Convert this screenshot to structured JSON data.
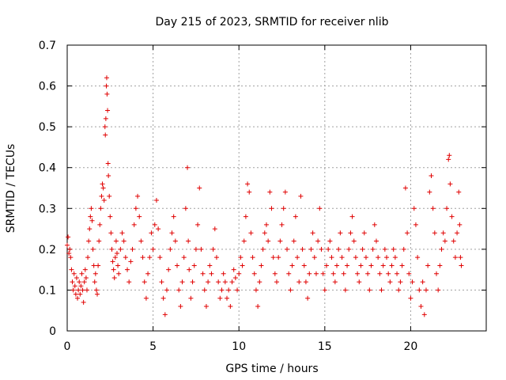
{
  "chart_data": {
    "type": "scatter",
    "title": "Day 215 of 2023, SRMTID for receiver nlib",
    "xlabel": "GPS time / hours",
    "ylabel": "SRMTID / TECUs",
    "xlim": [
      0,
      24.4
    ],
    "ylim": [
      0,
      0.7
    ],
    "x_ticks": [
      0,
      5,
      10,
      15,
      20
    ],
    "x_tick_labels": [
      "0",
      "5",
      "10",
      "15",
      "20"
    ],
    "y_ticks": [
      0,
      0.1,
      0.2,
      0.3,
      0.4,
      0.5,
      0.6,
      0.7
    ],
    "y_tick_labels": [
      "0",
      "0.1",
      "0.2",
      "0.3",
      "0.4",
      "0.5",
      "0.6",
      "0.7"
    ],
    "grid": true,
    "marker": "plus",
    "color": "#e00000",
    "series": [
      {
        "name": "SRMTID",
        "points": [
          [
            0.0,
            0.21
          ],
          [
            0.05,
            0.23
          ],
          [
            0.1,
            0.19
          ],
          [
            0.15,
            0.2
          ],
          [
            0.2,
            0.18
          ],
          [
            0.25,
            0.15
          ],
          [
            0.3,
            0.12
          ],
          [
            0.35,
            0.1
          ],
          [
            0.4,
            0.14
          ],
          [
            0.45,
            0.11
          ],
          [
            0.5,
            0.09
          ],
          [
            0.55,
            0.13
          ],
          [
            0.6,
            0.08
          ],
          [
            0.65,
            0.1
          ],
          [
            0.7,
            0.12
          ],
          [
            0.75,
            0.09
          ],
          [
            0.8,
            0.11
          ],
          [
            0.85,
            0.14
          ],
          [
            0.9,
            0.1
          ],
          [
            0.95,
            0.07
          ],
          [
            1.0,
            0.12
          ],
          [
            1.05,
            0.15
          ],
          [
            1.1,
            0.13
          ],
          [
            1.15,
            0.1
          ],
          [
            1.2,
            0.18
          ],
          [
            1.25,
            0.22
          ],
          [
            1.3,
            0.25
          ],
          [
            1.35,
            0.28
          ],
          [
            1.4,
            0.3
          ],
          [
            1.45,
            0.27
          ],
          [
            1.5,
            0.2
          ],
          [
            1.55,
            0.16
          ],
          [
            1.6,
            0.12
          ],
          [
            1.65,
            0.14
          ],
          [
            1.7,
            0.1
          ],
          [
            1.75,
            0.09
          ],
          [
            1.8,
            0.16
          ],
          [
            1.85,
            0.22
          ],
          [
            1.9,
            0.26
          ],
          [
            1.95,
            0.3
          ],
          [
            2.0,
            0.33
          ],
          [
            2.05,
            0.36
          ],
          [
            2.1,
            0.35
          ],
          [
            2.15,
            0.32
          ],
          [
            2.2,
            0.5
          ],
          [
            2.22,
            0.48
          ],
          [
            2.25,
            0.52
          ],
          [
            2.28,
            0.6
          ],
          [
            2.3,
            0.62
          ],
          [
            2.32,
            0.58
          ],
          [
            2.35,
            0.54
          ],
          [
            2.38,
            0.41
          ],
          [
            2.4,
            0.38
          ],
          [
            2.45,
            0.33
          ],
          [
            2.5,
            0.28
          ],
          [
            2.55,
            0.24
          ],
          [
            2.6,
            0.2
          ],
          [
            2.65,
            0.17
          ],
          [
            2.7,
            0.15
          ],
          [
            2.75,
            0.13
          ],
          [
            2.8,
            0.18
          ],
          [
            2.85,
            0.22
          ],
          [
            2.9,
            0.19
          ],
          [
            2.95,
            0.16
          ],
          [
            3.0,
            0.14
          ],
          [
            3.1,
            0.2
          ],
          [
            3.2,
            0.24
          ],
          [
            3.3,
            0.22
          ],
          [
            3.4,
            0.18
          ],
          [
            3.5,
            0.15
          ],
          [
            3.6,
            0.12
          ],
          [
            3.7,
            0.17
          ],
          [
            3.8,
            0.2
          ],
          [
            3.9,
            0.26
          ],
          [
            4.0,
            0.3
          ],
          [
            4.1,
            0.33
          ],
          [
            4.2,
            0.28
          ],
          [
            4.3,
            0.22
          ],
          [
            4.4,
            0.18
          ],
          [
            4.5,
            0.12
          ],
          [
            4.6,
            0.08
          ],
          [
            4.7,
            0.14
          ],
          [
            4.8,
            0.18
          ],
          [
            4.9,
            0.24
          ],
          [
            5.0,
            0.2
          ],
          [
            5.1,
            0.26
          ],
          [
            5.2,
            0.32
          ],
          [
            5.3,
            0.25
          ],
          [
            5.4,
            0.18
          ],
          [
            5.5,
            0.12
          ],
          [
            5.6,
            0.08
          ],
          [
            5.7,
            0.04
          ],
          [
            5.8,
            0.1
          ],
          [
            5.9,
            0.15
          ],
          [
            6.0,
            0.2
          ],
          [
            6.1,
            0.24
          ],
          [
            6.2,
            0.28
          ],
          [
            6.3,
            0.22
          ],
          [
            6.4,
            0.16
          ],
          [
            6.5,
            0.1
          ],
          [
            6.6,
            0.06
          ],
          [
            6.7,
            0.12
          ],
          [
            6.8,
            0.18
          ],
          [
            6.9,
            0.3
          ],
          [
            7.0,
            0.4
          ],
          [
            7.05,
            0.22
          ],
          [
            7.1,
            0.15
          ],
          [
            7.2,
            0.08
          ],
          [
            7.3,
            0.12
          ],
          [
            7.4,
            0.16
          ],
          [
            7.5,
            0.2
          ],
          [
            7.6,
            0.26
          ],
          [
            7.7,
            0.35
          ],
          [
            7.8,
            0.2
          ],
          [
            7.9,
            0.14
          ],
          [
            8.0,
            0.1
          ],
          [
            8.1,
            0.06
          ],
          [
            8.2,
            0.12
          ],
          [
            8.3,
            0.16
          ],
          [
            8.4,
            0.14
          ],
          [
            8.5,
            0.2
          ],
          [
            8.6,
            0.25
          ],
          [
            8.7,
            0.18
          ],
          [
            8.8,
            0.12
          ],
          [
            8.9,
            0.08
          ],
          [
            9.0,
            0.1
          ],
          [
            9.1,
            0.14
          ],
          [
            9.2,
            0.12
          ],
          [
            9.3,
            0.08
          ],
          [
            9.4,
            0.1
          ],
          [
            9.5,
            0.06
          ],
          [
            9.6,
            0.12
          ],
          [
            9.7,
            0.15
          ],
          [
            9.8,
            0.13
          ],
          [
            9.9,
            0.1
          ],
          [
            10.0,
            0.14
          ],
          [
            10.1,
            0.18
          ],
          [
            10.2,
            0.16
          ],
          [
            10.3,
            0.22
          ],
          [
            10.4,
            0.28
          ],
          [
            10.5,
            0.36
          ],
          [
            10.6,
            0.34
          ],
          [
            10.7,
            0.24
          ],
          [
            10.8,
            0.18
          ],
          [
            10.9,
            0.14
          ],
          [
            11.0,
            0.1
          ],
          [
            11.1,
            0.06
          ],
          [
            11.2,
            0.12
          ],
          [
            11.3,
            0.16
          ],
          [
            11.4,
            0.2
          ],
          [
            11.5,
            0.24
          ],
          [
            11.6,
            0.26
          ],
          [
            11.7,
            0.22
          ],
          [
            11.8,
            0.34
          ],
          [
            11.9,
            0.3
          ],
          [
            12.0,
            0.18
          ],
          [
            12.1,
            0.14
          ],
          [
            12.2,
            0.12
          ],
          [
            12.3,
            0.18
          ],
          [
            12.4,
            0.22
          ],
          [
            12.5,
            0.26
          ],
          [
            12.6,
            0.3
          ],
          [
            12.7,
            0.34
          ],
          [
            12.8,
            0.2
          ],
          [
            12.9,
            0.14
          ],
          [
            13.0,
            0.1
          ],
          [
            13.1,
            0.16
          ],
          [
            13.2,
            0.22
          ],
          [
            13.3,
            0.28
          ],
          [
            13.4,
            0.18
          ],
          [
            13.5,
            0.12
          ],
          [
            13.6,
            0.33
          ],
          [
            13.7,
            0.2
          ],
          [
            13.8,
            0.16
          ],
          [
            13.9,
            0.12
          ],
          [
            14.0,
            0.08
          ],
          [
            14.1,
            0.14
          ],
          [
            14.2,
            0.2
          ],
          [
            14.3,
            0.24
          ],
          [
            14.4,
            0.18
          ],
          [
            14.5,
            0.14
          ],
          [
            14.6,
            0.22
          ],
          [
            14.7,
            0.3
          ],
          [
            14.8,
            0.2
          ],
          [
            14.9,
            0.14
          ],
          [
            15.0,
            0.1
          ],
          [
            15.1,
            0.16
          ],
          [
            15.2,
            0.2
          ],
          [
            15.3,
            0.22
          ],
          [
            15.4,
            0.18
          ],
          [
            15.5,
            0.14
          ],
          [
            15.6,
            0.12
          ],
          [
            15.7,
            0.16
          ],
          [
            15.8,
            0.2
          ],
          [
            15.9,
            0.24
          ],
          [
            16.0,
            0.18
          ],
          [
            16.1,
            0.14
          ],
          [
            16.2,
            0.1
          ],
          [
            16.3,
            0.16
          ],
          [
            16.4,
            0.2
          ],
          [
            16.5,
            0.24
          ],
          [
            16.6,
            0.28
          ],
          [
            16.7,
            0.22
          ],
          [
            16.8,
            0.18
          ],
          [
            16.9,
            0.14
          ],
          [
            17.0,
            0.12
          ],
          [
            17.1,
            0.16
          ],
          [
            17.2,
            0.2
          ],
          [
            17.3,
            0.24
          ],
          [
            17.4,
            0.18
          ],
          [
            17.5,
            0.14
          ],
          [
            17.6,
            0.1
          ],
          [
            17.7,
            0.16
          ],
          [
            17.8,
            0.2
          ],
          [
            17.9,
            0.26
          ],
          [
            18.0,
            0.22
          ],
          [
            18.1,
            0.18
          ],
          [
            18.2,
            0.14
          ],
          [
            18.3,
            0.1
          ],
          [
            18.4,
            0.16
          ],
          [
            18.5,
            0.2
          ],
          [
            18.6,
            0.18
          ],
          [
            18.7,
            0.14
          ],
          [
            18.8,
            0.12
          ],
          [
            18.9,
            0.16
          ],
          [
            19.0,
            0.2
          ],
          [
            19.1,
            0.18
          ],
          [
            19.2,
            0.14
          ],
          [
            19.3,
            0.1
          ],
          [
            19.4,
            0.12
          ],
          [
            19.5,
            0.16
          ],
          [
            19.6,
            0.2
          ],
          [
            19.7,
            0.35
          ],
          [
            19.8,
            0.24
          ],
          [
            19.9,
            0.14
          ],
          [
            20.0,
            0.08
          ],
          [
            20.1,
            0.12
          ],
          [
            20.2,
            0.3
          ],
          [
            20.3,
            0.26
          ],
          [
            20.4,
            0.18
          ],
          [
            20.5,
            0.1
          ],
          [
            20.6,
            0.06
          ],
          [
            20.7,
            0.12
          ],
          [
            20.8,
            0.04
          ],
          [
            20.9,
            0.1
          ],
          [
            21.0,
            0.16
          ],
          [
            21.1,
            0.34
          ],
          [
            21.2,
            0.38
          ],
          [
            21.3,
            0.3
          ],
          [
            21.4,
            0.24
          ],
          [
            21.5,
            0.14
          ],
          [
            21.6,
            0.1
          ],
          [
            21.7,
            0.16
          ],
          [
            21.8,
            0.2
          ],
          [
            21.9,
            0.24
          ],
          [
            22.0,
            0.22
          ],
          [
            22.1,
            0.3
          ],
          [
            22.2,
            0.42
          ],
          [
            22.25,
            0.43
          ],
          [
            22.3,
            0.36
          ],
          [
            22.4,
            0.28
          ],
          [
            22.5,
            0.22
          ],
          [
            22.6,
            0.18
          ],
          [
            22.7,
            0.24
          ],
          [
            22.8,
            0.34
          ],
          [
            22.85,
            0.26
          ],
          [
            22.9,
            0.18
          ],
          [
            22.95,
            0.16
          ]
        ]
      }
    ]
  }
}
